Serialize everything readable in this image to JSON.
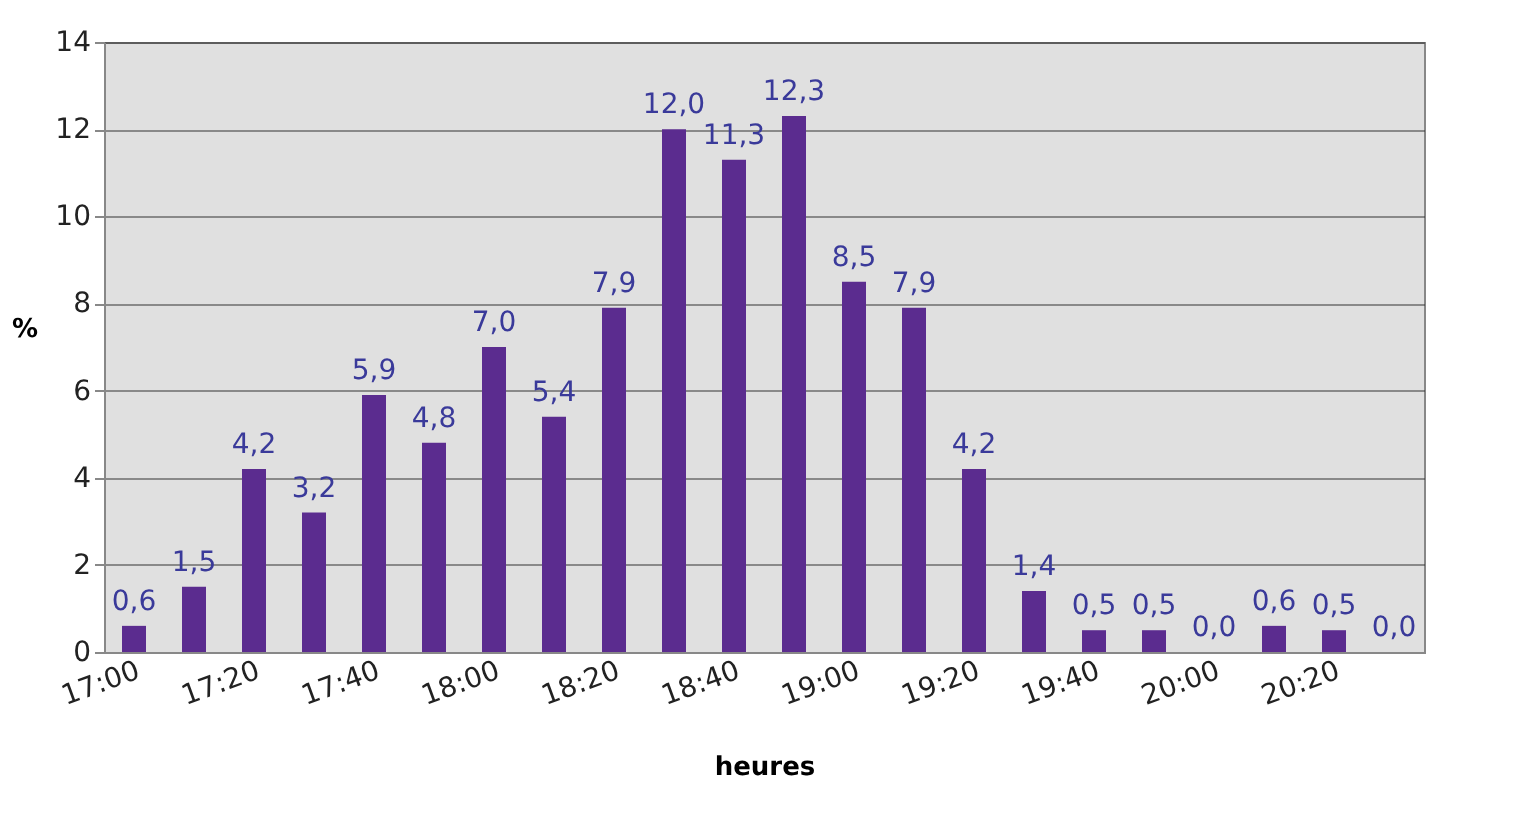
{
  "chart_data": {
    "type": "bar",
    "xlabel": "heures",
    "ylabel": "%",
    "categories": [
      "17:00",
      null,
      "17:20",
      null,
      "17:40",
      null,
      "18:00",
      null,
      "18:20",
      null,
      "18:40",
      null,
      "19:00",
      null,
      "19:20",
      null,
      "19:40",
      null,
      "20:00",
      null,
      "20:20",
      null
    ],
    "values": [
      0.6,
      1.5,
      4.2,
      3.2,
      5.9,
      4.8,
      7.0,
      5.4,
      7.9,
      12.0,
      11.3,
      12.3,
      8.5,
      7.9,
      4.2,
      1.4,
      0.5,
      0.5,
      0.0,
      0.6,
      0.5,
      0.0
    ],
    "value_labels": [
      "0,6",
      "1,5",
      "4,2",
      "3,2",
      "5,9",
      "4,8",
      "7,0",
      "5,4",
      "7,9",
      "12,0",
      "11,3",
      "12,3",
      "8,5",
      "7,9",
      "4,2",
      "1,4",
      "0,5",
      "0,5",
      "0,0",
      "0,6",
      "0,5",
      "0,0"
    ],
    "color": "#5b2c8f",
    "ylim": [
      0,
      14
    ],
    "yticks": [
      0,
      2,
      4,
      6,
      8,
      10,
      12,
      14
    ],
    "grid": "y"
  }
}
